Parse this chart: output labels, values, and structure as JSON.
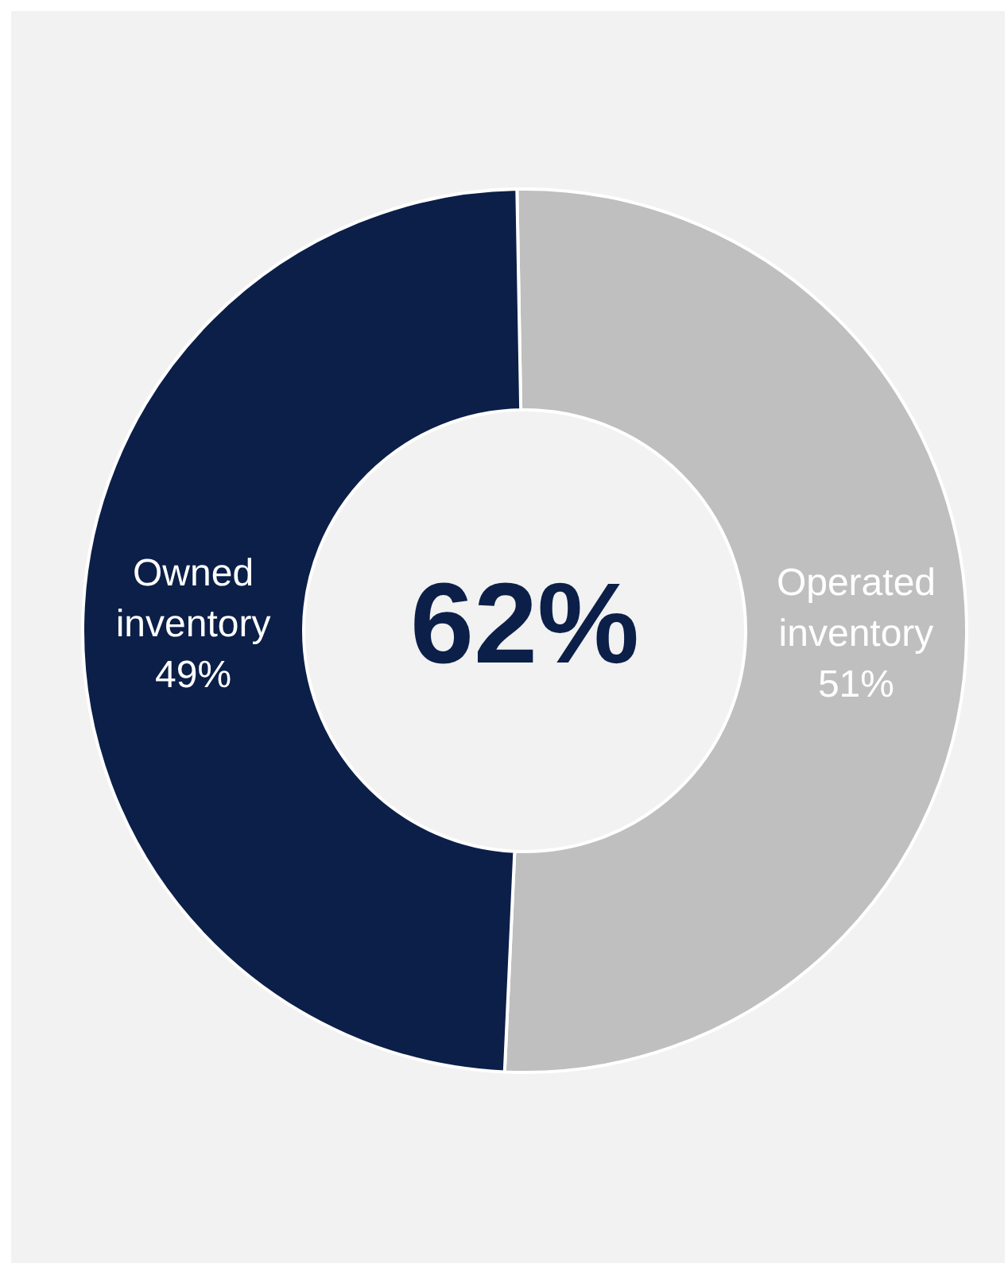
{
  "chart_data": {
    "type": "donut",
    "categories": [
      "Operated inventory",
      "Owned inventory"
    ],
    "values": [
      51,
      49
    ],
    "colors": [
      "#bfbfbf",
      "#0b1f48"
    ],
    "value_labels": [
      "51%",
      "49%"
    ],
    "legend": false,
    "annotations": [
      "62%"
    ]
  }
}
